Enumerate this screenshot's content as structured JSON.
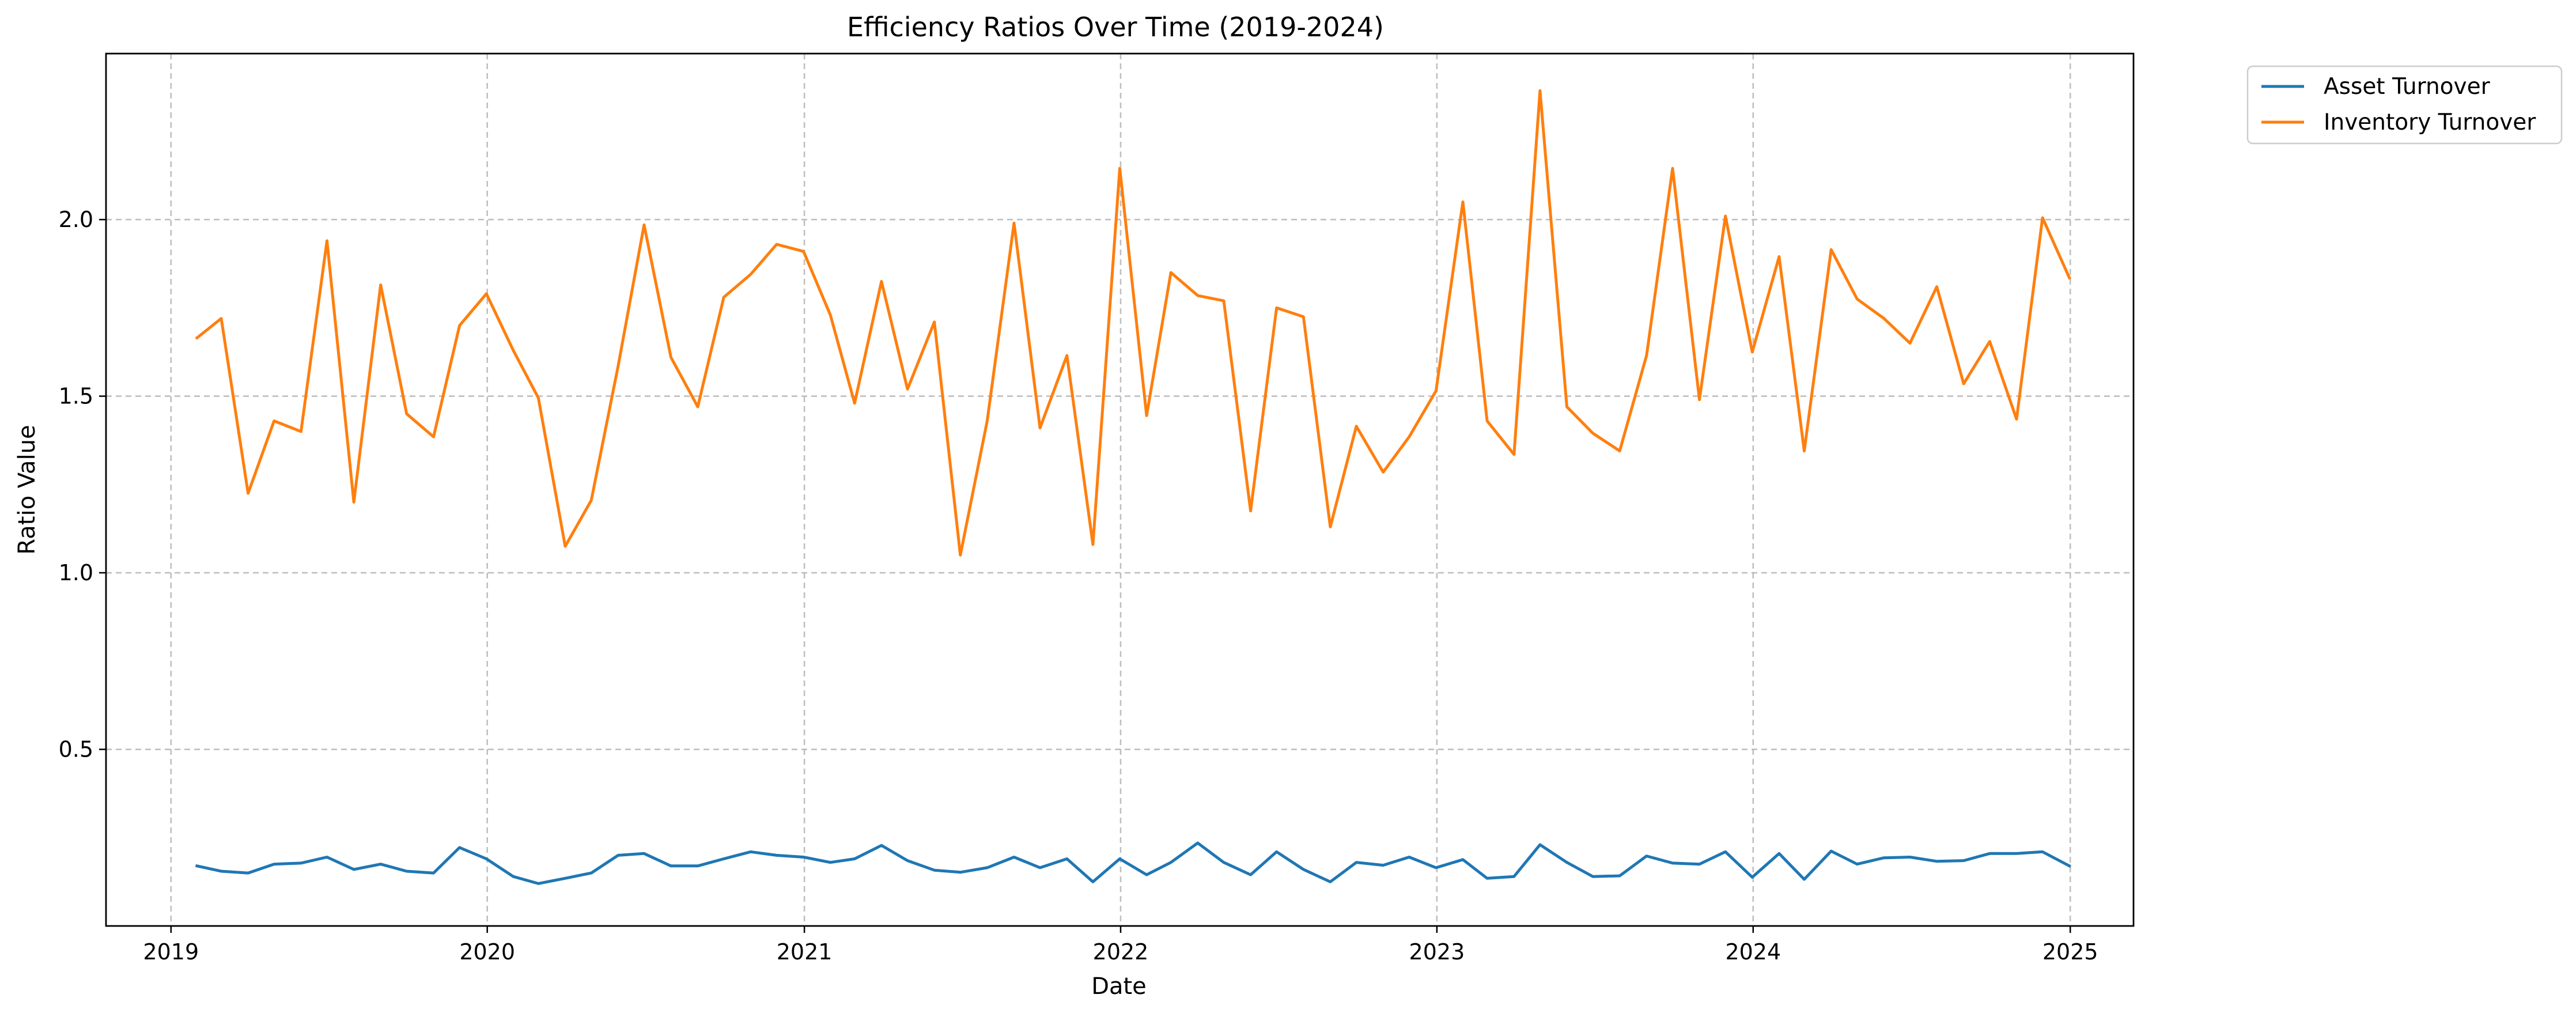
{
  "chart_data": {
    "type": "line",
    "title": "Efficiency Ratios Over Time (2019-2024)",
    "xlabel": "Date",
    "ylabel": "Ratio Value",
    "xlim": [
      "2018-10-18",
      "2025-03-15"
    ],
    "ylim": [
      0.0,
      2.47
    ],
    "xticks": [
      {
        "value": "2019-01-01",
        "label": "2019"
      },
      {
        "value": "2020-01-01",
        "label": "2020"
      },
      {
        "value": "2021-01-01",
        "label": "2021"
      },
      {
        "value": "2022-01-01",
        "label": "2022"
      },
      {
        "value": "2023-01-01",
        "label": "2023"
      },
      {
        "value": "2024-01-01",
        "label": "2024"
      },
      {
        "value": "2025-01-01",
        "label": "2025"
      }
    ],
    "yticks": [
      {
        "value": 0.5,
        "label": "0.5"
      },
      {
        "value": 1.0,
        "label": "1.0"
      },
      {
        "value": 1.5,
        "label": "1.5"
      },
      {
        "value": 2.0,
        "label": "2.0"
      }
    ],
    "grid": true,
    "legend_position": "outside-top-right",
    "x": [
      "2019-01-31",
      "2019-02-28",
      "2019-03-31",
      "2019-04-30",
      "2019-05-31",
      "2019-06-30",
      "2019-07-31",
      "2019-08-31",
      "2019-09-30",
      "2019-10-31",
      "2019-11-30",
      "2019-12-31",
      "2020-01-31",
      "2020-02-29",
      "2020-03-31",
      "2020-04-30",
      "2020-05-31",
      "2020-06-30",
      "2020-07-31",
      "2020-08-31",
      "2020-09-30",
      "2020-10-31",
      "2020-11-30",
      "2020-12-31",
      "2021-01-31",
      "2021-02-28",
      "2021-03-31",
      "2021-04-30",
      "2021-05-31",
      "2021-06-30",
      "2021-07-31",
      "2021-08-31",
      "2021-09-30",
      "2021-10-31",
      "2021-11-30",
      "2021-12-31",
      "2022-01-31",
      "2022-02-28",
      "2022-03-31",
      "2022-04-30",
      "2022-05-31",
      "2022-06-30",
      "2022-07-31",
      "2022-08-31",
      "2022-09-30",
      "2022-10-31",
      "2022-11-30",
      "2022-12-31",
      "2023-01-31",
      "2023-02-28",
      "2023-03-31",
      "2023-04-30",
      "2023-05-31",
      "2023-06-30",
      "2023-07-31",
      "2023-08-31",
      "2023-09-30",
      "2023-10-31",
      "2023-11-30",
      "2023-12-31",
      "2024-01-31",
      "2024-02-29",
      "2024-03-31",
      "2024-04-30",
      "2024-05-31",
      "2024-06-30",
      "2024-07-31",
      "2024-08-31",
      "2024-09-30",
      "2024-10-31",
      "2024-11-30",
      "2024-12-31"
    ],
    "series": [
      {
        "name": "Asset Turnover",
        "color": "#1f77b4",
        "values": [
          0.17,
          0.155,
          0.15,
          0.175,
          0.178,
          0.195,
          0.16,
          0.175,
          0.155,
          0.15,
          0.222,
          0.19,
          0.14,
          0.12,
          0.135,
          0.15,
          0.2,
          0.205,
          0.17,
          0.17,
          0.19,
          0.21,
          0.2,
          0.195,
          0.18,
          0.19,
          0.228,
          0.185,
          0.158,
          0.152,
          0.165,
          0.195,
          0.165,
          0.19,
          0.125,
          0.19,
          0.145,
          0.18,
          0.235,
          0.18,
          0.145,
          0.21,
          0.16,
          0.125,
          0.18,
          0.172,
          0.195,
          0.165,
          0.188,
          0.135,
          0.14,
          0.23,
          0.18,
          0.14,
          0.142,
          0.198,
          0.178,
          0.175,
          0.21,
          0.138,
          0.205,
          0.132,
          0.212,
          0.175,
          0.193,
          0.195,
          0.183,
          0.185,
          0.205,
          0.205,
          0.21,
          0.17
        ]
      },
      {
        "name": "Inventory Turnover",
        "color": "#ff7f0e",
        "values": [
          1.665,
          1.72,
          1.225,
          1.43,
          1.4,
          1.94,
          1.2,
          1.815,
          1.45,
          1.385,
          1.7,
          1.79,
          1.63,
          1.495,
          1.075,
          1.205,
          1.585,
          1.985,
          1.61,
          1.47,
          1.78,
          1.845,
          1.93,
          1.91,
          1.73,
          1.48,
          1.825,
          1.52,
          1.71,
          1.05,
          1.43,
          1.99,
          1.41,
          1.615,
          1.08,
          2.145,
          1.445,
          1.85,
          1.785,
          1.77,
          1.175,
          1.75,
          1.725,
          1.13,
          1.415,
          1.285,
          1.385,
          1.515,
          2.05,
          1.43,
          1.335,
          2.365,
          1.47,
          1.395,
          1.345,
          1.615,
          2.145,
          1.49,
          2.01,
          1.625,
          1.895,
          1.345,
          1.915,
          1.775,
          1.72,
          1.65,
          1.81,
          1.535,
          1.655,
          1.435,
          2.005,
          1.835
        ]
      }
    ]
  }
}
